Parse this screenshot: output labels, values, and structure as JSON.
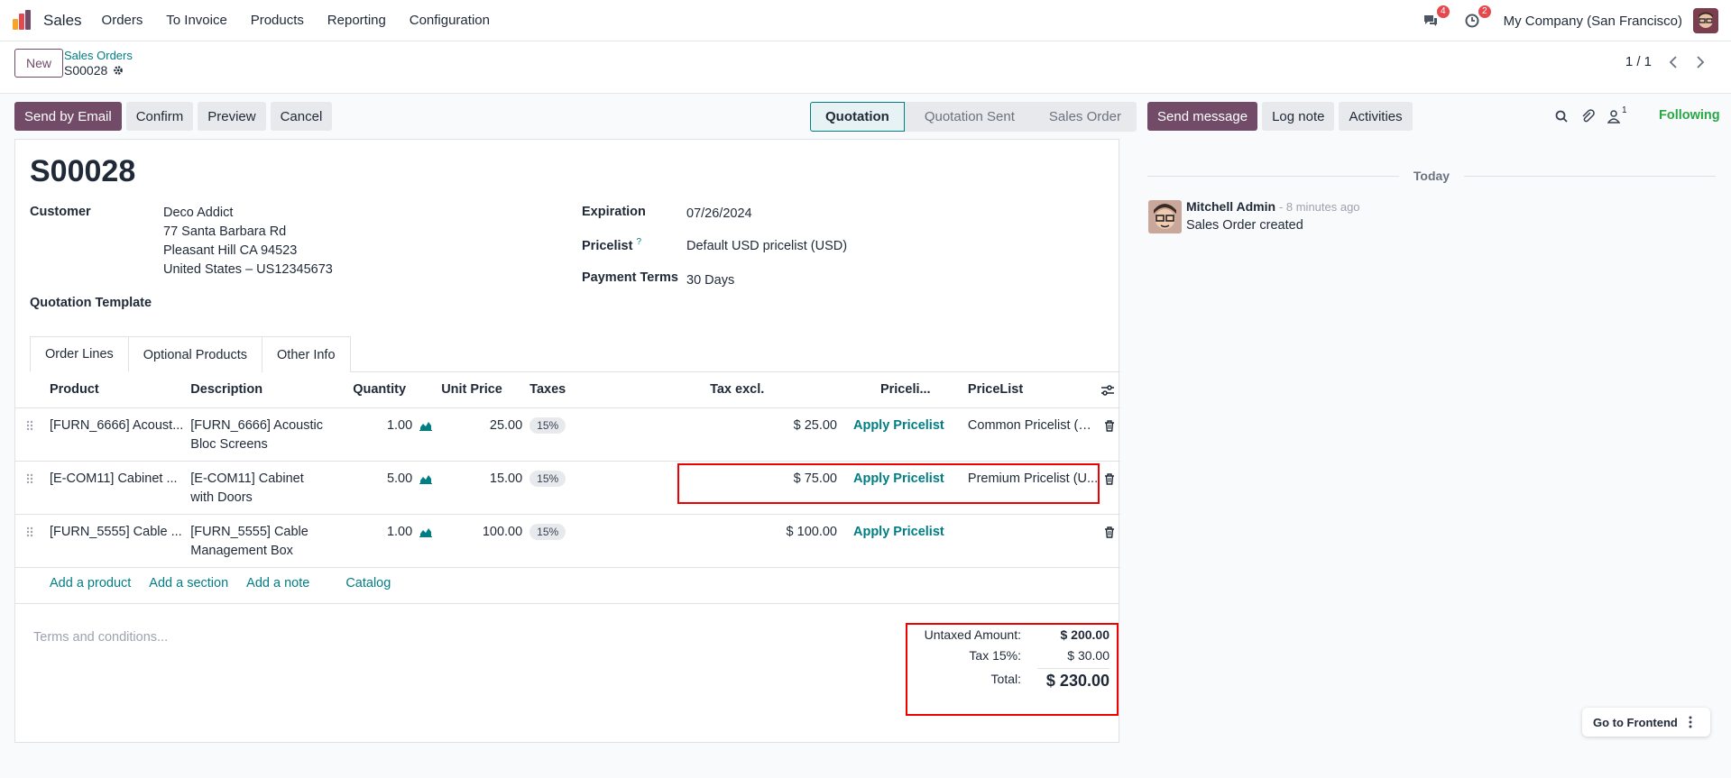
{
  "topbar": {
    "app_name": "Sales",
    "menu": [
      "Orders",
      "To Invoice",
      "Products",
      "Reporting",
      "Configuration"
    ],
    "messages_count": "4",
    "activities_count": "2",
    "company": "My Company (San Francisco)"
  },
  "control": {
    "new_label": "New",
    "breadcrumb_parent": "Sales Orders",
    "breadcrumb_current": "S00028",
    "pager": "1 / 1"
  },
  "actions": {
    "send_email": "Send by Email",
    "confirm": "Confirm",
    "preview": "Preview",
    "cancel": "Cancel"
  },
  "statusbar": [
    "Quotation",
    "Quotation Sent",
    "Sales Order"
  ],
  "form": {
    "name": "S00028",
    "customer_label": "Customer",
    "customer_name": "Deco Addict",
    "customer_addr1": "77 Santa Barbara Rd",
    "customer_addr2": "Pleasant Hill CA 94523",
    "customer_addr3": "United States – US12345673",
    "template_label": "Quotation Template",
    "expiration_label": "Expiration",
    "expiration_value": "07/26/2024",
    "pricelist_label": "Pricelist",
    "pricelist_help": "?",
    "pricelist_value": "Default USD pricelist (USD)",
    "payment_terms_label": "Payment Terms",
    "payment_terms_value": "30 Days"
  },
  "tabs": [
    "Order Lines",
    "Optional Products",
    "Other Info"
  ],
  "order_lines": {
    "columns": [
      "Product",
      "Description",
      "Quantity",
      "Unit Price",
      "Taxes",
      "Tax excl.",
      "Priceli...",
      "PriceList"
    ],
    "rows": [
      {
        "product": "[FURN_6666] Acoust...",
        "desc1": "[FURN_6666] Acoustic",
        "desc2": "Bloc Screens",
        "qty": "1.00",
        "price": "25.00",
        "tax": "15%",
        "subtotal": "$ 25.00",
        "apply": "Apply Pricelist",
        "pricelist": "Common Pricelist (U..."
      },
      {
        "product": "[E-COM11] Cabinet ...",
        "desc1": "[E-COM11] Cabinet",
        "desc2": "with Doors",
        "qty": "5.00",
        "price": "15.00",
        "tax": "15%",
        "subtotal": "$ 75.00",
        "apply": "Apply Pricelist",
        "pricelist": "Premium Pricelist (U..."
      },
      {
        "product": "[FURN_5555] Cable ...",
        "desc1": "[FURN_5555] Cable",
        "desc2": "Management Box",
        "qty": "1.00",
        "price": "100.00",
        "tax": "15%",
        "subtotal": "$ 100.00",
        "apply": "Apply Pricelist",
        "pricelist": ""
      }
    ],
    "add_product": "Add a product",
    "add_section": "Add a section",
    "add_note": "Add a note",
    "catalog": "Catalog"
  },
  "terms_placeholder": "Terms and conditions...",
  "totals": {
    "untaxed_label": "Untaxed Amount:",
    "untaxed_value": "$ 200.00",
    "tax_label": "Tax 15%:",
    "tax_value": "$ 30.00",
    "total_label": "Total:",
    "total_value": "$ 230.00"
  },
  "chatter": {
    "send_message": "Send message",
    "log_note": "Log note",
    "activities": "Activities",
    "followers_count": "1",
    "following": "Following",
    "today": "Today",
    "author": "Mitchell Admin",
    "time": "- 8 minutes ago",
    "message": "Sales Order created"
  },
  "frontend_label": "Go to Frontend",
  "colors": {
    "brand": "#714b67",
    "link": "#017e84",
    "highlight": "#e00000",
    "following": "#28a745"
  }
}
